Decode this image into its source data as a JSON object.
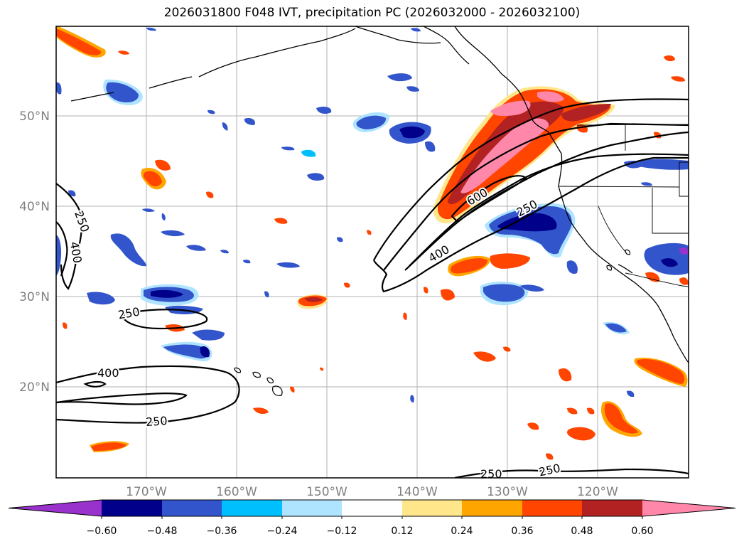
{
  "title": "2026031800 F048 IVT, precipitation PC (2026032000 - 2026032100)",
  "latitude_labels": [
    "50°N",
    "40°N",
    "30°N",
    "20°N"
  ],
  "longitude_labels": [
    "170°W",
    "160°W",
    "150°W",
    "140°W",
    "130°W",
    "120°W"
  ],
  "ivt_contour_labels": [
    "250",
    "400",
    "600",
    "400",
    "250",
    "250",
    "400",
    "250",
    "250",
    "250"
  ],
  "colorbar": {
    "tick_labels": [
      "−0.60",
      "−0.48",
      "−0.36",
      "−0.24",
      "−0.12",
      "0.12",
      "0.24",
      "0.36",
      "0.48",
      "0.60"
    ],
    "colors": [
      "#9932cc",
      "#00008b",
      "#3355cc",
      "#00bfff",
      "#aee4ff",
      "#ffffff",
      "#ffe68a",
      "#ffa500",
      "#ff4500",
      "#b22222",
      "#ff88aa"
    ]
  }
}
